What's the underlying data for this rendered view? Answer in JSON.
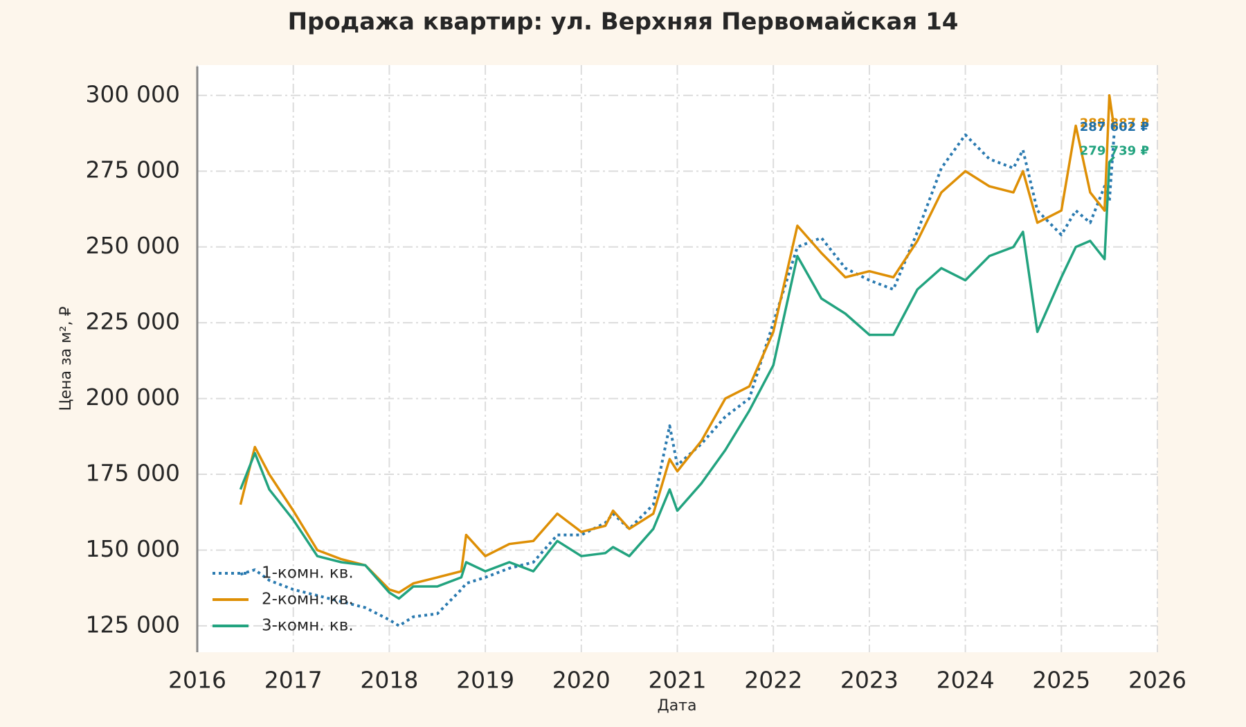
{
  "chart_data": {
    "type": "line",
    "title": "Продажа квартир: ул. Верхняя Первомайская 14",
    "xlabel": "Дата",
    "ylabel": "Цена за м², ₽",
    "x": [
      2016.45,
      2016.6,
      2016.75,
      2017,
      2017.25,
      2017.5,
      2017.75,
      2018,
      2018.1,
      2018.25,
      2018.5,
      2018.75,
      2018.8,
      2019,
      2019.25,
      2019.5,
      2019.75,
      2020,
      2020.25,
      2020.33,
      2020.5,
      2020.75,
      2020.92,
      2021,
      2021.25,
      2021.5,
      2021.75,
      2022,
      2022.25,
      2022.5,
      2022.75,
      2023,
      2023.25,
      2023.5,
      2023.75,
      2024,
      2024.25,
      2024.5,
      2024.6,
      2024.75,
      2025,
      2025.15,
      2025.3,
      2025.45,
      2025.5,
      2025.55
    ],
    "series": [
      {
        "name": "1-комн. кв.",
        "color": "#2a7ab0",
        "linestyle": "dotted",
        "values": [
          142000,
          143500,
          140000,
          137000,
          135000,
          133000,
          131000,
          127000,
          125000,
          128000,
          129000,
          137000,
          139000,
          141000,
          144000,
          146000,
          155000,
          155000,
          159000,
          162000,
          157000,
          165000,
          191000,
          178000,
          185000,
          194000,
          200000,
          225000,
          250000,
          253000,
          243000,
          239000,
          236000,
          255000,
          276000,
          287000,
          279000,
          276000,
          282000,
          262000,
          254000,
          262000,
          258000,
          270000,
          265000,
          287602
        ]
      },
      {
        "name": "2-комн. кв.",
        "color": "#de8f05",
        "linestyle": "solid",
        "values": [
          165000,
          184000,
          175000,
          163000,
          150000,
          147000,
          145000,
          137000,
          136000,
          139000,
          141000,
          143000,
          155000,
          148000,
          152000,
          153000,
          162000,
          156000,
          158000,
          163000,
          157000,
          162000,
          180000,
          176000,
          186000,
          200000,
          204000,
          222000,
          257000,
          248000,
          240000,
          242000,
          240000,
          252000,
          268000,
          275000,
          270000,
          268000,
          275000,
          258000,
          262000,
          290000,
          268000,
          262000,
          300000,
          288887
        ]
      },
      {
        "name": "3-комн. кв.",
        "color": "#22a37f",
        "linestyle": "solid",
        "values": [
          170000,
          182000,
          170000,
          160000,
          148000,
          146000,
          145000,
          136000,
          134000,
          138000,
          138000,
          141000,
          146000,
          143000,
          146000,
          143000,
          153000,
          148000,
          149000,
          151000,
          148000,
          157000,
          170000,
          163000,
          172000,
          183000,
          196000,
          211000,
          247000,
          233000,
          228000,
          221000,
          221000,
          236000,
          243000,
          239000,
          247000,
          250000,
          255000,
          222000,
          240000,
          250000,
          252000,
          246000,
          278000,
          279739
        ]
      }
    ],
    "annotations": [
      {
        "text": "288 887 ₽",
        "y": 288887,
        "color": "#de8f05"
      },
      {
        "text": "287 602 ₽",
        "y": 287602,
        "color": "#1f6fa8"
      },
      {
        "text": "279 739 ₽",
        "y": 279739,
        "color": "#22a37f"
      }
    ],
    "xlim": [
      2016,
      2026
    ],
    "xticks": [
      2016,
      2017,
      2018,
      2019,
      2020,
      2021,
      2022,
      2023,
      2024,
      2025,
      2026
    ],
    "ylim": [
      116300,
      310000
    ],
    "yticks": [
      {
        "value": 125000,
        "label": "125 000"
      },
      {
        "value": 150000,
        "label": "150 000"
      },
      {
        "value": 175000,
        "label": "175 000"
      },
      {
        "value": 200000,
        "label": "200 000"
      },
      {
        "value": 225000,
        "label": "225 000"
      },
      {
        "value": 250000,
        "label": "250 000"
      },
      {
        "value": 275000,
        "label": "275 000"
      },
      {
        "value": 300000,
        "label": "300 000"
      }
    ],
    "grid": true,
    "legend": "lower left"
  }
}
